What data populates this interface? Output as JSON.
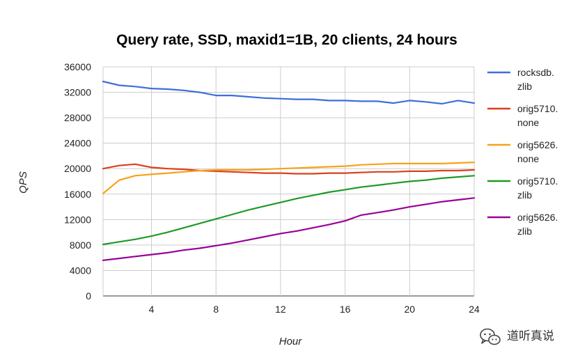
{
  "chart_data": {
    "type": "line",
    "title": "Query rate, SSD, maxid1=1B, 20 clients, 24 hours",
    "xlabel": "Hour",
    "ylabel": "QPS",
    "xlim": [
      1,
      24
    ],
    "ylim": [
      0,
      36000
    ],
    "x_ticks": [
      4,
      8,
      12,
      16,
      20,
      24
    ],
    "y_ticks": [
      0,
      4000,
      8000,
      12000,
      16000,
      20000,
      24000,
      28000,
      32000,
      36000
    ],
    "grid": true,
    "legend_position": "right",
    "x": [
      1,
      2,
      3,
      4,
      5,
      6,
      7,
      8,
      9,
      10,
      11,
      12,
      13,
      14,
      15,
      16,
      17,
      18,
      19,
      20,
      21,
      22,
      23,
      24
    ],
    "series": [
      {
        "name": "rocksdb.zlib",
        "legend_lines": [
          "rocksdb.",
          "zlib"
        ],
        "color": "#3c6fd9",
        "values": [
          33700,
          33100,
          32900,
          32600,
          32500,
          32300,
          32000,
          31500,
          31500,
          31300,
          31100,
          31000,
          30900,
          30900,
          30700,
          30700,
          30600,
          30600,
          30300,
          30700,
          30500,
          30200,
          30700,
          30300
        ]
      },
      {
        "name": "orig5710.none",
        "legend_lines": [
          "orig5710.",
          "none"
        ],
        "color": "#d9401c",
        "values": [
          20000,
          20500,
          20700,
          20200,
          20000,
          19900,
          19700,
          19600,
          19500,
          19400,
          19300,
          19300,
          19200,
          19200,
          19300,
          19300,
          19400,
          19500,
          19500,
          19600,
          19600,
          19700,
          19700,
          19800
        ]
      },
      {
        "name": "orig5626.none",
        "legend_lines": [
          "orig5626.",
          "none"
        ],
        "color": "#f7a21b",
        "values": [
          16100,
          18200,
          18900,
          19100,
          19300,
          19500,
          19700,
          19800,
          19800,
          19800,
          19900,
          20000,
          20100,
          20200,
          20300,
          20400,
          20600,
          20700,
          20800,
          20800,
          20800,
          20800,
          20900,
          21000
        ]
      },
      {
        "name": "orig5710.zlib",
        "legend_lines": [
          "orig5710.",
          "zlib"
        ],
        "color": "#1f9a27",
        "values": [
          8100,
          8500,
          8900,
          9400,
          10000,
          10700,
          11400,
          12100,
          12800,
          13500,
          14100,
          14700,
          15300,
          15800,
          16300,
          16700,
          17100,
          17400,
          17700,
          18000,
          18200,
          18500,
          18700,
          18900
        ]
      },
      {
        "name": "orig5626.zlib",
        "legend_lines": [
          "orig5626.",
          "zlib"
        ],
        "color": "#990099",
        "values": [
          5600,
          5900,
          6200,
          6500,
          6800,
          7200,
          7500,
          7900,
          8300,
          8800,
          9300,
          9800,
          10200,
          10700,
          11200,
          11800,
          12700,
          13100,
          13500,
          14000,
          14400,
          14800,
          15100,
          15400
        ]
      }
    ]
  },
  "watermark": {
    "text": "道听真说",
    "icon": "wechat-icon"
  }
}
